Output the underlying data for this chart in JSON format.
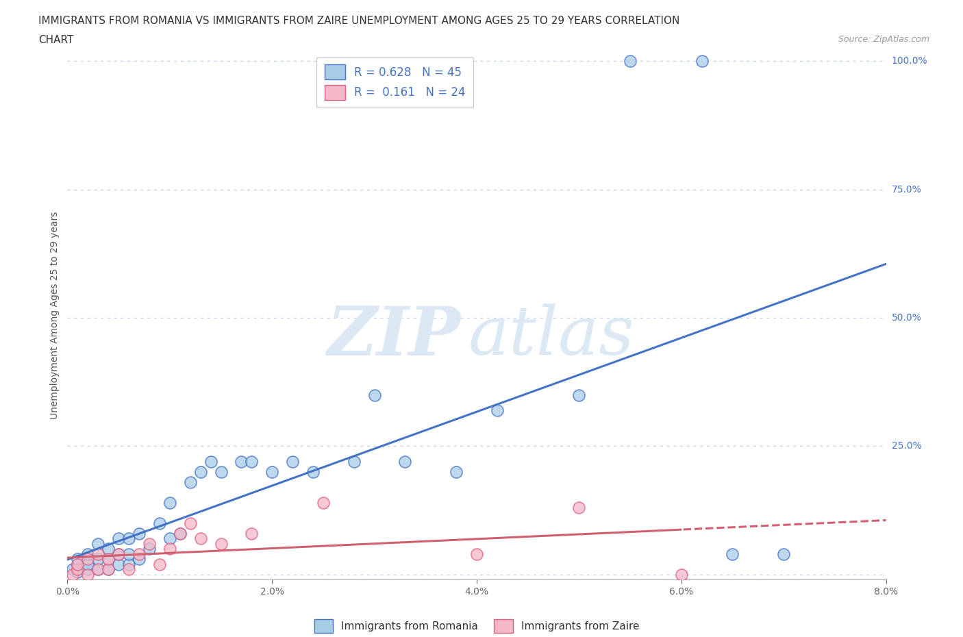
{
  "title_line1": "IMMIGRANTS FROM ROMANIA VS IMMIGRANTS FROM ZAIRE UNEMPLOYMENT AMONG AGES 25 TO 29 YEARS CORRELATION",
  "title_line2": "CHART",
  "source": "Source: ZipAtlas.com",
  "ylabel": "Unemployment Among Ages 25 to 29 years",
  "xlabel_romania": "Immigrants from Romania",
  "xlabel_zaire": "Immigrants from Zaire",
  "xlim": [
    0.0,
    0.08
  ],
  "ylim": [
    -0.01,
    1.02
  ],
  "xticks": [
    0.0,
    0.02,
    0.04,
    0.06,
    0.08
  ],
  "xtick_labels": [
    "0.0%",
    "2.0%",
    "4.0%",
    "6.0%",
    "8.0%"
  ],
  "yticks": [
    0.0,
    0.25,
    0.5,
    0.75,
    1.0
  ],
  "ytick_labels": [
    "",
    "25.0%",
    "50.0%",
    "75.0%",
    "100.0%"
  ],
  "romania_color": "#a8cce8",
  "zaire_color": "#f4b8c8",
  "romania_edge_color": "#4472c4",
  "zaire_edge_color": "#e06080",
  "romania_line_color": "#4472c4",
  "zaire_line_color": "#d06070",
  "background_color": "#ffffff",
  "watermark_zip": "ZIP",
  "watermark_atlas": "atlas",
  "watermark_color": "#dce8f4",
  "legend_r_romania": "0.628",
  "legend_n_romania": "45",
  "legend_r_zaire": "0.161",
  "legend_n_zaire": "24",
  "romania_scatter_x": [
    0.0005,
    0.001,
    0.001,
    0.001,
    0.002,
    0.002,
    0.002,
    0.003,
    0.003,
    0.003,
    0.004,
    0.004,
    0.004,
    0.005,
    0.005,
    0.005,
    0.006,
    0.006,
    0.006,
    0.007,
    0.007,
    0.008,
    0.009,
    0.01,
    0.01,
    0.011,
    0.012,
    0.013,
    0.014,
    0.015,
    0.017,
    0.018,
    0.02,
    0.022,
    0.024,
    0.028,
    0.03,
    0.033,
    0.038,
    0.042,
    0.05,
    0.055,
    0.062,
    0.065,
    0.07
  ],
  "romania_scatter_y": [
    0.01,
    0.005,
    0.02,
    0.03,
    0.01,
    0.02,
    0.04,
    0.01,
    0.03,
    0.06,
    0.01,
    0.03,
    0.05,
    0.02,
    0.04,
    0.07,
    0.02,
    0.04,
    0.07,
    0.03,
    0.08,
    0.05,
    0.1,
    0.07,
    0.14,
    0.08,
    0.18,
    0.2,
    0.22,
    0.2,
    0.22,
    0.22,
    0.2,
    0.22,
    0.2,
    0.22,
    0.35,
    0.22,
    0.2,
    0.32,
    0.35,
    1.0,
    1.0,
    0.04,
    0.04
  ],
  "zaire_scatter_x": [
    0.0005,
    0.001,
    0.001,
    0.002,
    0.002,
    0.003,
    0.003,
    0.004,
    0.004,
    0.005,
    0.006,
    0.007,
    0.008,
    0.009,
    0.01,
    0.011,
    0.012,
    0.013,
    0.015,
    0.018,
    0.025,
    0.04,
    0.05,
    0.06
  ],
  "zaire_scatter_y": [
    0.0,
    0.01,
    0.02,
    0.0,
    0.03,
    0.01,
    0.04,
    0.01,
    0.03,
    0.04,
    0.01,
    0.04,
    0.06,
    0.02,
    0.05,
    0.08,
    0.1,
    0.07,
    0.06,
    0.08,
    0.14,
    0.04,
    0.13,
    0.0
  ],
  "title_fontsize": 11,
  "axis_label_fontsize": 10,
  "tick_fontsize": 10,
  "legend_fontsize": 12,
  "grid_color": "#c8d4e8",
  "ytick_label_color": "#4472c4"
}
